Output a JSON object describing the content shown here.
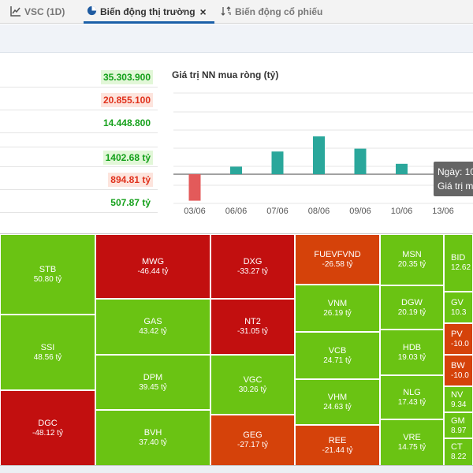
{
  "tabs": [
    {
      "label": "VSC (1D)",
      "icon": "line-chart-icon",
      "active": false
    },
    {
      "label": "Biến động thị trường",
      "icon": "pie-chart-icon",
      "active": true,
      "close": "×"
    },
    {
      "label": "Biến động cổ phiếu",
      "icon": "sort-arrows-icon",
      "active": false
    }
  ],
  "stats": [
    {
      "value": "35.303.900",
      "tone": "pos",
      "highlight": true
    },
    {
      "value": "20.855.100",
      "tone": "neg",
      "highlight": true
    },
    {
      "value": "14.448.800",
      "tone": "pos",
      "highlight": false
    },
    {
      "value": "1402.68 tỷ",
      "tone": "pos",
      "highlight": true
    },
    {
      "value": "894.81 tỷ",
      "tone": "neg",
      "highlight": true
    },
    {
      "value": "507.87 tỷ",
      "tone": "pos",
      "highlight": false
    }
  ],
  "chart_data": {
    "type": "bar",
    "title": "Giá trị NN mua ròng (tỷ)",
    "categories": [
      "03/06",
      "06/06",
      "07/06",
      "08/06",
      "09/06",
      "10/06",
      "13/06"
    ],
    "values": [
      -140,
      40,
      120,
      200,
      135,
      55,
      -35
    ],
    "colors": {
      "positive": "#2aa79b",
      "negative": "#e35a5a"
    },
    "grid": true
  },
  "tooltip": {
    "line1": "Ngày: 10",
    "line2": "Giá trị m"
  },
  "heatmap": [
    {
      "ticker": "STB",
      "value": "50.80 tỷ"
    },
    {
      "ticker": "SSI",
      "value": "48.56 tỷ"
    },
    {
      "ticker": "DGC",
      "value": "-48.12 tỷ"
    },
    {
      "ticker": "MWG",
      "value": "-46.44 tỷ"
    },
    {
      "ticker": "GAS",
      "value": "43.42 tỷ"
    },
    {
      "ticker": "DPM",
      "value": "39.45 tỷ"
    },
    {
      "ticker": "BVH",
      "value": "37.40 tỷ"
    },
    {
      "ticker": "DXG",
      "value": "-33.27 tỷ"
    },
    {
      "ticker": "NT2",
      "value": "-31.05 tỷ"
    },
    {
      "ticker": "VGC",
      "value": "30.26 tỷ"
    },
    {
      "ticker": "GEG",
      "value": "-27.17 tỷ"
    },
    {
      "ticker": "FUEVFVND",
      "value": "-26.58 tỷ"
    },
    {
      "ticker": "VNM",
      "value": "26.19 tỷ"
    },
    {
      "ticker": "VCB",
      "value": "24.71 tỷ"
    },
    {
      "ticker": "VHM",
      "value": "24.63 tỷ"
    },
    {
      "ticker": "REE",
      "value": "-21.44 tỷ"
    },
    {
      "ticker": "MSN",
      "value": "20.35 tỷ"
    },
    {
      "ticker": "DGW",
      "value": "20.19 tỷ"
    },
    {
      "ticker": "HDB",
      "value": "19.03 tỷ"
    },
    {
      "ticker": "NLG",
      "value": "17.43 tỷ"
    },
    {
      "ticker": "VRE",
      "value": "14.75 tỷ"
    },
    {
      "ticker": "BID",
      "value": "12.62"
    },
    {
      "ticker": "GV",
      "value": "10.3"
    },
    {
      "ticker": "PV",
      "value": "-10.0"
    },
    {
      "ticker": "BW",
      "value": "-10.0"
    },
    {
      "ticker": "NV",
      "value": "9.34"
    },
    {
      "ticker": "GM",
      "value": "8.97"
    },
    {
      "ticker": "CT",
      "value": "8.22"
    }
  ]
}
